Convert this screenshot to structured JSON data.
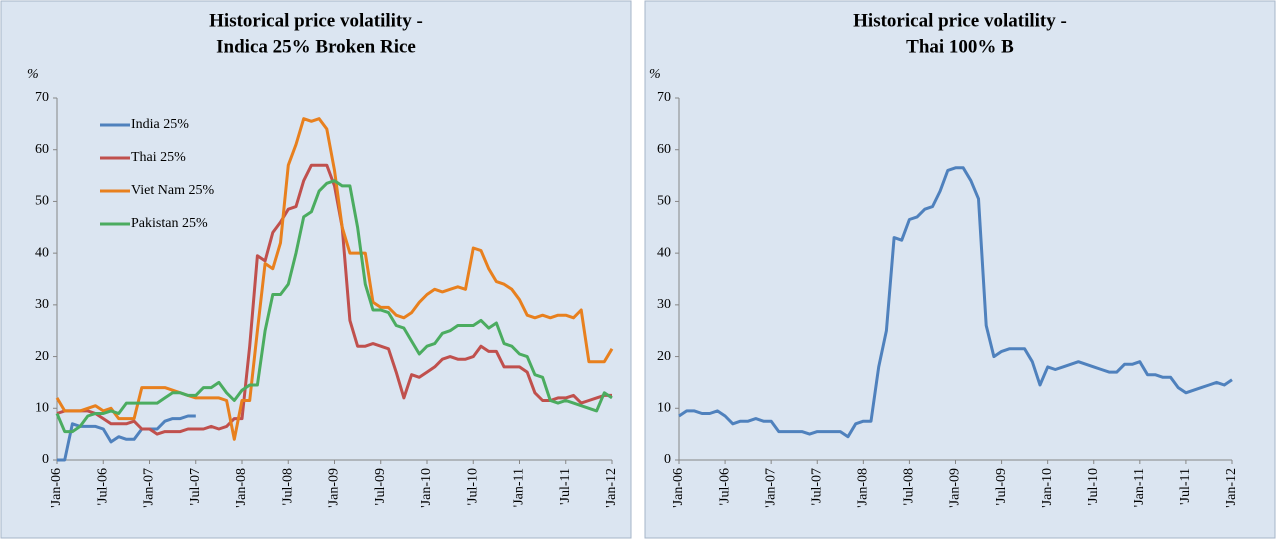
{
  "chart_data": [
    {
      "type": "line",
      "title": [
        "Historical price volatility -",
        "Indica 25% Broken Rice"
      ],
      "ylabel": "%",
      "categories": [
        "'Jan-06",
        null,
        null,
        null,
        null,
        null,
        "'Jul-06",
        null,
        null,
        null,
        null,
        null,
        "'Jan-07",
        null,
        null,
        null,
        null,
        null,
        "'Jul-07",
        null,
        null,
        null,
        null,
        null,
        "'Jan-08",
        null,
        null,
        null,
        null,
        null,
        "'Jul-08",
        null,
        null,
        null,
        null,
        null,
        "'Jan-09",
        null,
        null,
        null,
        null,
        null,
        "'Jul-09",
        null,
        null,
        null,
        null,
        null,
        "'Jan-10",
        null,
        null,
        null,
        null,
        null,
        "'Jul-10",
        null,
        null,
        null,
        null,
        null,
        "'Jan-11",
        null,
        null,
        null,
        null,
        null,
        "'Jul-11",
        null,
        null,
        null,
        null,
        null,
        "'Jan-12"
      ],
      "ylim": [
        0,
        70
      ],
      "yticks": [
        0,
        10,
        20,
        30,
        40,
        50,
        60,
        70
      ],
      "legend": "upper left",
      "series": [
        {
          "name": "India 25%",
          "color": "#4f81bd",
          "values": [
            0,
            0,
            7,
            6.5,
            6.5,
            6.5,
            6,
            3.5,
            4.5,
            4,
            4,
            6,
            6,
            6,
            7.5,
            8,
            8,
            8.5,
            8.5,
            null,
            null,
            null,
            null,
            null,
            null,
            null,
            null,
            null,
            null,
            null,
            null,
            null,
            null,
            null,
            null,
            null,
            null,
            null,
            null,
            null,
            null,
            null,
            null,
            null,
            null,
            null,
            null,
            null,
            null,
            null,
            null,
            null,
            null,
            null,
            null,
            null,
            null,
            null,
            null,
            null,
            null,
            null,
            null,
            null,
            null,
            null,
            null,
            null,
            null,
            null,
            null,
            null,
            null
          ]
        },
        {
          "name": "Thai 25%",
          "color": "#c0504d",
          "values": [
            9,
            9.5,
            9.5,
            9.5,
            9.5,
            9,
            8,
            7,
            7,
            7,
            7.5,
            6,
            6,
            5,
            5.5,
            5.5,
            5.5,
            6,
            6,
            6,
            6.5,
            6,
            6.5,
            8,
            8,
            22,
            39.5,
            38.5,
            44,
            46,
            48.5,
            49,
            54,
            57,
            57,
            57,
            53,
            45,
            27,
            22,
            22,
            22.5,
            22,
            21.5,
            17,
            12,
            16.5,
            16,
            17,
            18,
            19.5,
            20,
            19.5,
            19.5,
            20,
            22,
            21,
            21,
            18,
            18,
            18,
            17,
            13,
            11.5,
            11.5,
            12,
            12,
            12.5,
            11,
            11.5,
            12,
            12.5,
            12.5
          ]
        },
        {
          "name": "Viet Nam 25%",
          "color": "#e8801e",
          "values": [
            12,
            9.5,
            9.5,
            9.5,
            10,
            10.5,
            9.5,
            10,
            8,
            8,
            8,
            14,
            14,
            14,
            14,
            13.5,
            13,
            12.5,
            12,
            12,
            12,
            12,
            11.5,
            4,
            11.5,
            11.5,
            25,
            38,
            37,
            42,
            57,
            61,
            66,
            65.5,
            66,
            64,
            56,
            45,
            40,
            40,
            40,
            30.5,
            29.5,
            29.5,
            28,
            27.5,
            28.5,
            30.5,
            32,
            33,
            32.5,
            33,
            33.5,
            33,
            41,
            40.5,
            37,
            34.5,
            34,
            33,
            31,
            28,
            27.5,
            28,
            27.5,
            28,
            28,
            27.5,
            29,
            19,
            19,
            19,
            21.5
          ]
        },
        {
          "name": "Pakistan 25%",
          "color": "#4bac60",
          "values": [
            9,
            5.5,
            5.5,
            6.5,
            8.5,
            9,
            9,
            9.5,
            9,
            11,
            11,
            11,
            11,
            11,
            12,
            13,
            13,
            12.5,
            12.5,
            14,
            14,
            15,
            13,
            11.5,
            13.5,
            14.5,
            14.5,
            25,
            32,
            32,
            34,
            40,
            47,
            48,
            52,
            53.5,
            54,
            53,
            53,
            45,
            34,
            29,
            29,
            28.5,
            26,
            25.5,
            23,
            20.5,
            22,
            22.5,
            24.5,
            25,
            26,
            26,
            26,
            27,
            25.5,
            26.5,
            22.5,
            22,
            20.5,
            20,
            16.5,
            16,
            11.5,
            11,
            11.5,
            11,
            10.5,
            10,
            9.5,
            13,
            12
          ]
        }
      ]
    },
    {
      "type": "line",
      "title": [
        "Historical price volatility -",
        "Thai 100% B"
      ],
      "ylabel": "%",
      "categories": [
        "'Jan-06",
        null,
        null,
        null,
        null,
        null,
        "'Jul-06",
        null,
        null,
        null,
        null,
        null,
        "'Jan-07",
        null,
        null,
        null,
        null,
        null,
        "'Jul-07",
        null,
        null,
        null,
        null,
        null,
        "'Jan-08",
        null,
        null,
        null,
        null,
        null,
        "'Jul-08",
        null,
        null,
        null,
        null,
        null,
        "'Jan-09",
        null,
        null,
        null,
        null,
        null,
        "'Jul-09",
        null,
        null,
        null,
        null,
        null,
        "'Jan-10",
        null,
        null,
        null,
        null,
        null,
        "'Jul-10",
        null,
        null,
        null,
        null,
        null,
        "'Jan-11",
        null,
        null,
        null,
        null,
        null,
        "'Jul-11",
        null,
        null,
        null,
        null,
        null,
        "'Jan-12"
      ],
      "ylim": [
        0,
        70
      ],
      "yticks": [
        0,
        10,
        20,
        30,
        40,
        50,
        60,
        70
      ],
      "series": [
        {
          "color": "#4f81bd",
          "values": [
            8.5,
            9.5,
            9.5,
            9,
            9,
            9.5,
            8.5,
            7,
            7.5,
            7.5,
            8,
            7.5,
            7.5,
            5.5,
            5.5,
            5.5,
            5.5,
            5,
            5.5,
            5.5,
            5.5,
            5.5,
            4.5,
            7,
            7.5,
            7.5,
            18,
            25,
            43,
            42.5,
            46.5,
            47,
            48.5,
            49,
            52,
            56,
            56.5,
            56.5,
            54,
            50.5,
            26,
            20,
            21,
            21.5,
            21.5,
            21.5,
            19,
            14.5,
            18,
            17.5,
            18,
            18.5,
            19,
            18.5,
            18,
            17.5,
            17,
            17,
            18.5,
            18.5,
            19,
            16.5,
            16.5,
            16,
            16,
            14,
            13,
            13.5,
            14,
            14.5,
            15,
            14.5,
            15.5
          ]
        }
      ]
    }
  ]
}
